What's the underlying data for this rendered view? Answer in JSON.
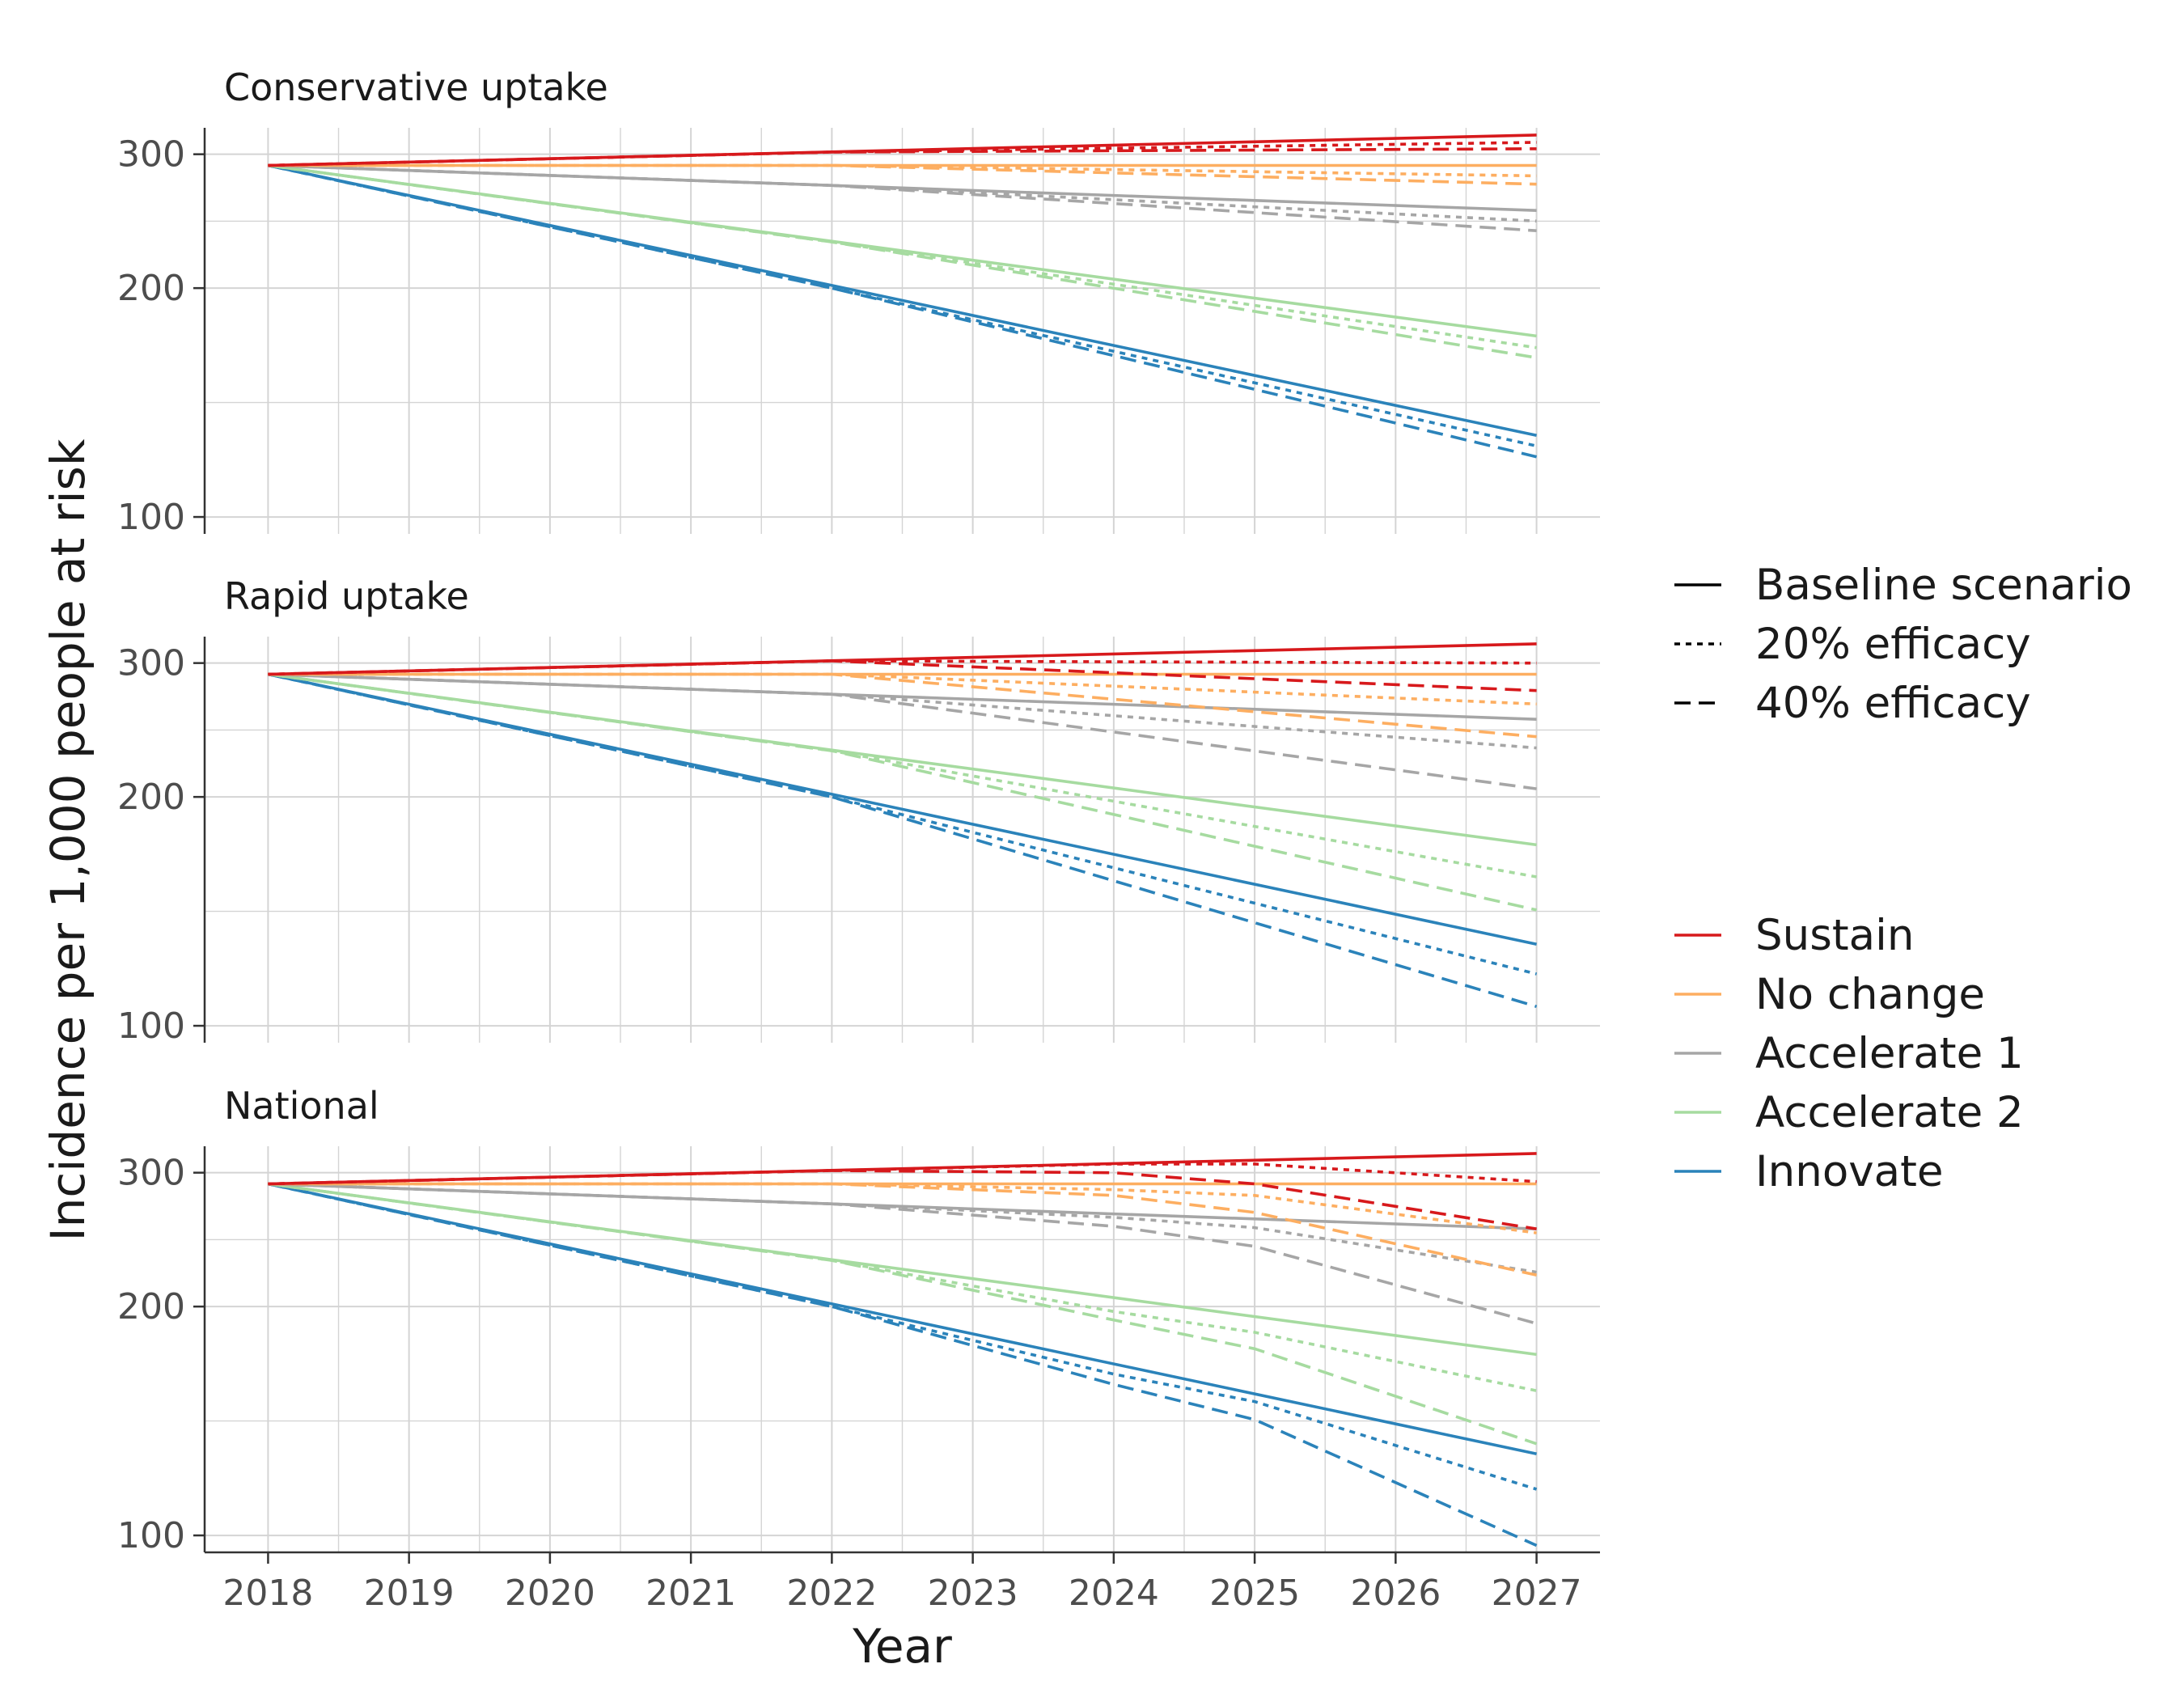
{
  "chart_data": {
    "type": "line",
    "xlabel": "Year",
    "ylabel": "Incidence per 1,000 people at risk",
    "x_ticks": [
      2018,
      2019,
      2020,
      2021,
      2022,
      2023,
      2024,
      2025,
      2026,
      2027
    ],
    "y_ticks": [
      100,
      200,
      300
    ],
    "y_scale": "log",
    "ylim": [
      95,
      325
    ],
    "xlim": [
      2017.55,
      2027.45
    ],
    "grid": true,
    "legend_linetype": {
      "placement": "right",
      "entries": [
        {
          "label": "Baseline scenario",
          "dash": "solid"
        },
        {
          "label": "20% efficacy",
          "dash": "dotted"
        },
        {
          "label": "40% efficacy",
          "dash": "dashed"
        }
      ]
    },
    "legend_color": {
      "placement": "right",
      "entries": [
        {
          "label": "Sustain",
          "color": "#d7191c"
        },
        {
          "label": "No change",
          "color": "#fdae61"
        },
        {
          "label": "Accelerate 1",
          "color": "#a6a6a6"
        },
        {
          "label": "Accelerate 2",
          "color": "#a6dba0"
        },
        {
          "label": "Innovate",
          "color": "#2b83ba"
        }
      ]
    },
    "panels": [
      {
        "title": "Conservative uptake",
        "series": [
          {
            "group": "Sustain",
            "efficacy": "Baseline scenario",
            "x": [
              2018,
              2027
            ],
            "y": [
              290,
              318
            ]
          },
          {
            "group": "Sustain",
            "efficacy": "20% efficacy",
            "x": [
              2018,
              2022,
              2027
            ],
            "y": [
              290,
              302,
              311
            ]
          },
          {
            "group": "Sustain",
            "efficacy": "40% efficacy",
            "x": [
              2018,
              2022,
              2027
            ],
            "y": [
              290,
              302,
              305
            ]
          },
          {
            "group": "No change",
            "efficacy": "Baseline scenario",
            "x": [
              2018,
              2027
            ],
            "y": [
              290,
              290
            ]
          },
          {
            "group": "No change",
            "efficacy": "20% efficacy",
            "x": [
              2018,
              2022,
              2027
            ],
            "y": [
              290,
              290,
              281
            ]
          },
          {
            "group": "No change",
            "efficacy": "40% efficacy",
            "x": [
              2018,
              2022,
              2027
            ],
            "y": [
              290,
              290,
              274
            ]
          },
          {
            "group": "Accelerate 1",
            "efficacy": "Baseline scenario",
            "x": [
              2018,
              2027
            ],
            "y": [
              290,
              253
            ]
          },
          {
            "group": "Accelerate 1",
            "efficacy": "20% efficacy",
            "x": [
              2018,
              2022,
              2027
            ],
            "y": [
              290,
              273,
              245
            ]
          },
          {
            "group": "Accelerate 1",
            "efficacy": "40% efficacy",
            "x": [
              2018,
              2022,
              2027
            ],
            "y": [
              290,
              273,
              238
            ]
          },
          {
            "group": "Accelerate 2",
            "efficacy": "Baseline scenario",
            "x": [
              2018,
              2027
            ],
            "y": [
              290,
              173
            ]
          },
          {
            "group": "Accelerate 2",
            "efficacy": "20% efficacy",
            "x": [
              2018,
              2022,
              2027
            ],
            "y": [
              290,
              230,
              167
            ]
          },
          {
            "group": "Accelerate 2",
            "efficacy": "40% efficacy",
            "x": [
              2018,
              2022,
              2027
            ],
            "y": [
              290,
              230,
              162
            ]
          },
          {
            "group": "Innovate",
            "efficacy": "Baseline scenario",
            "x": [
              2018,
              2027
            ],
            "y": [
              290,
              128
            ]
          },
          {
            "group": "Innovate",
            "efficacy": "20% efficacy",
            "x": [
              2018,
              2022,
              2027
            ],
            "y": [
              290,
              200,
              124
            ]
          },
          {
            "group": "Innovate",
            "efficacy": "40% efficacy",
            "x": [
              2018,
              2022,
              2027
            ],
            "y": [
              290,
              200,
              120
            ]
          }
        ]
      },
      {
        "title": "Rapid uptake",
        "series": [
          {
            "group": "Sustain",
            "efficacy": "Baseline scenario",
            "x": [
              2018,
              2027
            ],
            "y": [
              290,
              318
            ]
          },
          {
            "group": "Sustain",
            "efficacy": "20% efficacy",
            "x": [
              2018,
              2022,
              2027
            ],
            "y": [
              290,
              302,
              300
            ]
          },
          {
            "group": "Sustain",
            "efficacy": "40% efficacy",
            "x": [
              2018,
              2022,
              2027
            ],
            "y": [
              290,
              302,
              276
            ]
          },
          {
            "group": "No change",
            "efficacy": "Baseline scenario",
            "x": [
              2018,
              2027
            ],
            "y": [
              290,
              290
            ]
          },
          {
            "group": "No change",
            "efficacy": "20% efficacy",
            "x": [
              2018,
              2022,
              2027
            ],
            "y": [
              290,
              290,
              265
            ]
          },
          {
            "group": "No change",
            "efficacy": "40% efficacy",
            "x": [
              2018,
              2022,
              2027
            ],
            "y": [
              290,
              290,
              240
            ]
          },
          {
            "group": "Accelerate 1",
            "efficacy": "Baseline scenario",
            "x": [
              2018,
              2027
            ],
            "y": [
              290,
              253
            ]
          },
          {
            "group": "Accelerate 1",
            "efficacy": "20% efficacy",
            "x": [
              2018,
              2022,
              2027
            ],
            "y": [
              290,
              273,
              232
            ]
          },
          {
            "group": "Accelerate 1",
            "efficacy": "40% efficacy",
            "x": [
              2018,
              2022,
              2027
            ],
            "y": [
              290,
              273,
              205
            ]
          },
          {
            "group": "Accelerate 2",
            "efficacy": "Baseline scenario",
            "x": [
              2018,
              2027
            ],
            "y": [
              290,
              173
            ]
          },
          {
            "group": "Accelerate 2",
            "efficacy": "20% efficacy",
            "x": [
              2018,
              2022,
              2027
            ],
            "y": [
              290,
              230,
              157
            ]
          },
          {
            "group": "Accelerate 2",
            "efficacy": "40% efficacy",
            "x": [
              2018,
              2022,
              2027
            ],
            "y": [
              290,
              230,
              142
            ]
          },
          {
            "group": "Innovate",
            "efficacy": "Baseline scenario",
            "x": [
              2018,
              2027
            ],
            "y": [
              290,
              128
            ]
          },
          {
            "group": "Innovate",
            "efficacy": "20% efficacy",
            "x": [
              2018,
              2022,
              2027
            ],
            "y": [
              290,
              200,
              117
            ]
          },
          {
            "group": "Innovate",
            "efficacy": "40% efficacy",
            "x": [
              2018,
              2022,
              2027
            ],
            "y": [
              290,
              200,
              106
            ]
          }
        ]
      },
      {
        "title": "National",
        "series": [
          {
            "group": "Sustain",
            "efficacy": "Baseline scenario",
            "x": [
              2018,
              2027
            ],
            "y": [
              290,
              318
            ]
          },
          {
            "group": "Sustain",
            "efficacy": "20% efficacy",
            "x": [
              2018,
              2022,
              2024,
              2025,
              2027
            ],
            "y": [
              290,
              302,
              308,
              308,
              292
            ]
          },
          {
            "group": "Sustain",
            "efficacy": "40% efficacy",
            "x": [
              2018,
              2022,
              2024,
              2025,
              2027
            ],
            "y": [
              290,
              302,
              300,
              290,
              253
            ]
          },
          {
            "group": "No change",
            "efficacy": "Baseline scenario",
            "x": [
              2018,
              2027
            ],
            "y": [
              290,
              290
            ]
          },
          {
            "group": "No change",
            "efficacy": "20% efficacy",
            "x": [
              2018,
              2022,
              2024,
              2025,
              2027
            ],
            "y": [
              290,
              290,
              285,
              280,
              250
            ]
          },
          {
            "group": "No change",
            "efficacy": "40% efficacy",
            "x": [
              2018,
              2022,
              2024,
              2025,
              2027
            ],
            "y": [
              290,
              290,
              280,
              266,
              220
            ]
          },
          {
            "group": "Accelerate 1",
            "efficacy": "Baseline scenario",
            "x": [
              2018,
              2027
            ],
            "y": [
              290,
              253
            ]
          },
          {
            "group": "Accelerate 1",
            "efficacy": "20% efficacy",
            "x": [
              2018,
              2022,
              2024,
              2025,
              2027
            ],
            "y": [
              290,
              273,
              262,
              254,
              222
            ]
          },
          {
            "group": "Accelerate 1",
            "efficacy": "40% efficacy",
            "x": [
              2018,
              2022,
              2024,
              2025,
              2027
            ],
            "y": [
              290,
              273,
              255,
              240,
              190
            ]
          },
          {
            "group": "Accelerate 2",
            "efficacy": "Baseline scenario",
            "x": [
              2018,
              2027
            ],
            "y": [
              290,
              173
            ]
          },
          {
            "group": "Accelerate 2",
            "efficacy": "20% efficacy",
            "x": [
              2018,
              2022,
              2024,
              2025,
              2027
            ],
            "y": [
              290,
              230,
              197,
              185,
              155
            ]
          },
          {
            "group": "Accelerate 2",
            "efficacy": "40% efficacy",
            "x": [
              2018,
              2022,
              2024,
              2025,
              2027
            ],
            "y": [
              290,
              230,
              192,
              176,
              132
            ]
          },
          {
            "group": "Innovate",
            "efficacy": "Baseline scenario",
            "x": [
              2018,
              2027
            ],
            "y": [
              290,
              128
            ]
          },
          {
            "group": "Innovate",
            "efficacy": "20% efficacy",
            "x": [
              2018,
              2022,
              2024,
              2025,
              2027
            ],
            "y": [
              290,
              200,
              163,
              150,
              115
            ]
          },
          {
            "group": "Innovate",
            "efficacy": "40% efficacy",
            "x": [
              2018,
              2022,
              2024,
              2025,
              2027
            ],
            "y": [
              290,
              200,
              158,
              142,
              97
            ]
          }
        ]
      }
    ]
  }
}
